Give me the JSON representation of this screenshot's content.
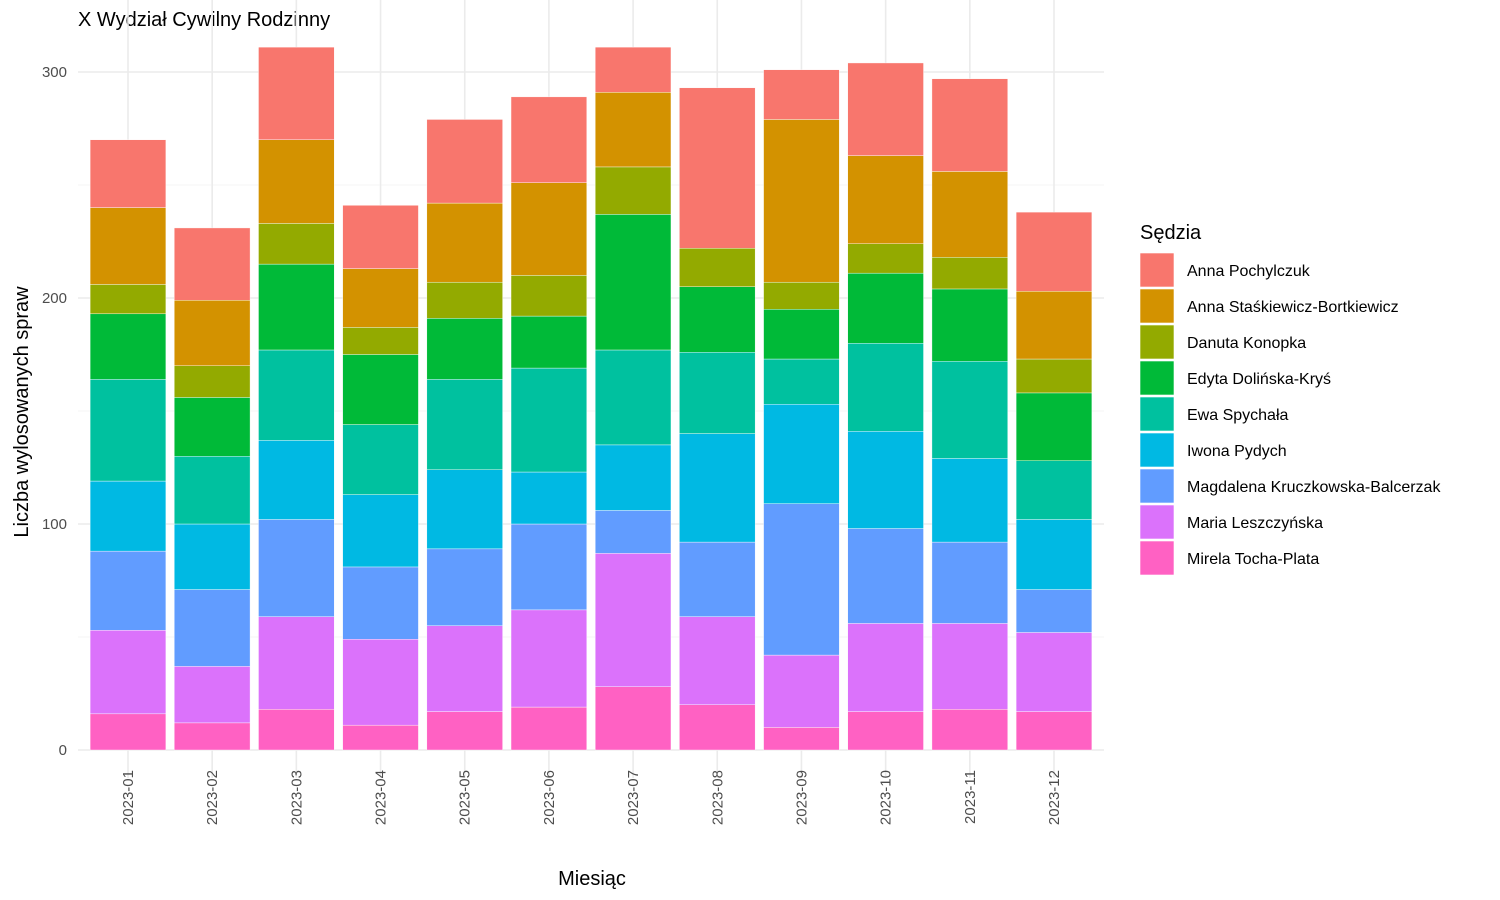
{
  "chart_data": {
    "type": "bar",
    "stacked": true,
    "title": "X Wydział Cywilny Rodzinny",
    "xlabel": "Miesiąc",
    "ylabel": "Liczba wylosowanych spraw",
    "ylim": [
      -12,
      320
    ],
    "yticks": [
      0,
      100,
      200,
      300
    ],
    "grid": true,
    "legend_title": "Sędzia",
    "legend_position": "right",
    "categories": [
      "2023-01",
      "2023-02",
      "2023-03",
      "2023-04",
      "2023-05",
      "2023-06",
      "2023-07",
      "2023-08",
      "2023-09",
      "2023-10",
      "2023-11",
      "2023-12"
    ],
    "series": [
      {
        "name": "Anna Pochylczuk",
        "color": "#F8766D",
        "values": [
          30,
          32,
          41,
          28,
          37,
          38,
          20,
          71,
          22,
          41,
          41,
          35
        ]
      },
      {
        "name": "Anna Staśkiewicz-Bortkiewicz",
        "color": "#D39200",
        "values": [
          34,
          29,
          37,
          26,
          35,
          41,
          33,
          0,
          72,
          39,
          38,
          30
        ]
      },
      {
        "name": "Danuta Konopka",
        "color": "#93AA00",
        "values": [
          13,
          14,
          18,
          12,
          16,
          18,
          21,
          17,
          12,
          13,
          14,
          15
        ]
      },
      {
        "name": "Edyta Dolińska-Kryś",
        "color": "#00BA38",
        "values": [
          29,
          26,
          38,
          31,
          27,
          23,
          60,
          29,
          22,
          31,
          32,
          30
        ]
      },
      {
        "name": "Ewa Spychała",
        "color": "#00C19F",
        "values": [
          45,
          30,
          40,
          31,
          40,
          46,
          42,
          36,
          20,
          39,
          43,
          26
        ]
      },
      {
        "name": "Iwona Pydych",
        "color": "#00B9E3",
        "values": [
          31,
          29,
          35,
          32,
          35,
          23,
          29,
          48,
          44,
          43,
          37,
          31
        ]
      },
      {
        "name": "Magdalena Kruczkowska-Balcerzak",
        "color": "#619CFF",
        "values": [
          35,
          34,
          43,
          32,
          34,
          38,
          19,
          33,
          67,
          42,
          36,
          19
        ]
      },
      {
        "name": "Maria Leszczyńska",
        "color": "#DB72FB",
        "values": [
          37,
          25,
          41,
          38,
          38,
          43,
          59,
          39,
          32,
          39,
          38,
          35
        ]
      },
      {
        "name": "Mirela Tocha-Plata",
        "color": "#FF61C3",
        "values": [
          16,
          12,
          18,
          11,
          17,
          19,
          28,
          20,
          10,
          17,
          18,
          17
        ]
      }
    ]
  }
}
